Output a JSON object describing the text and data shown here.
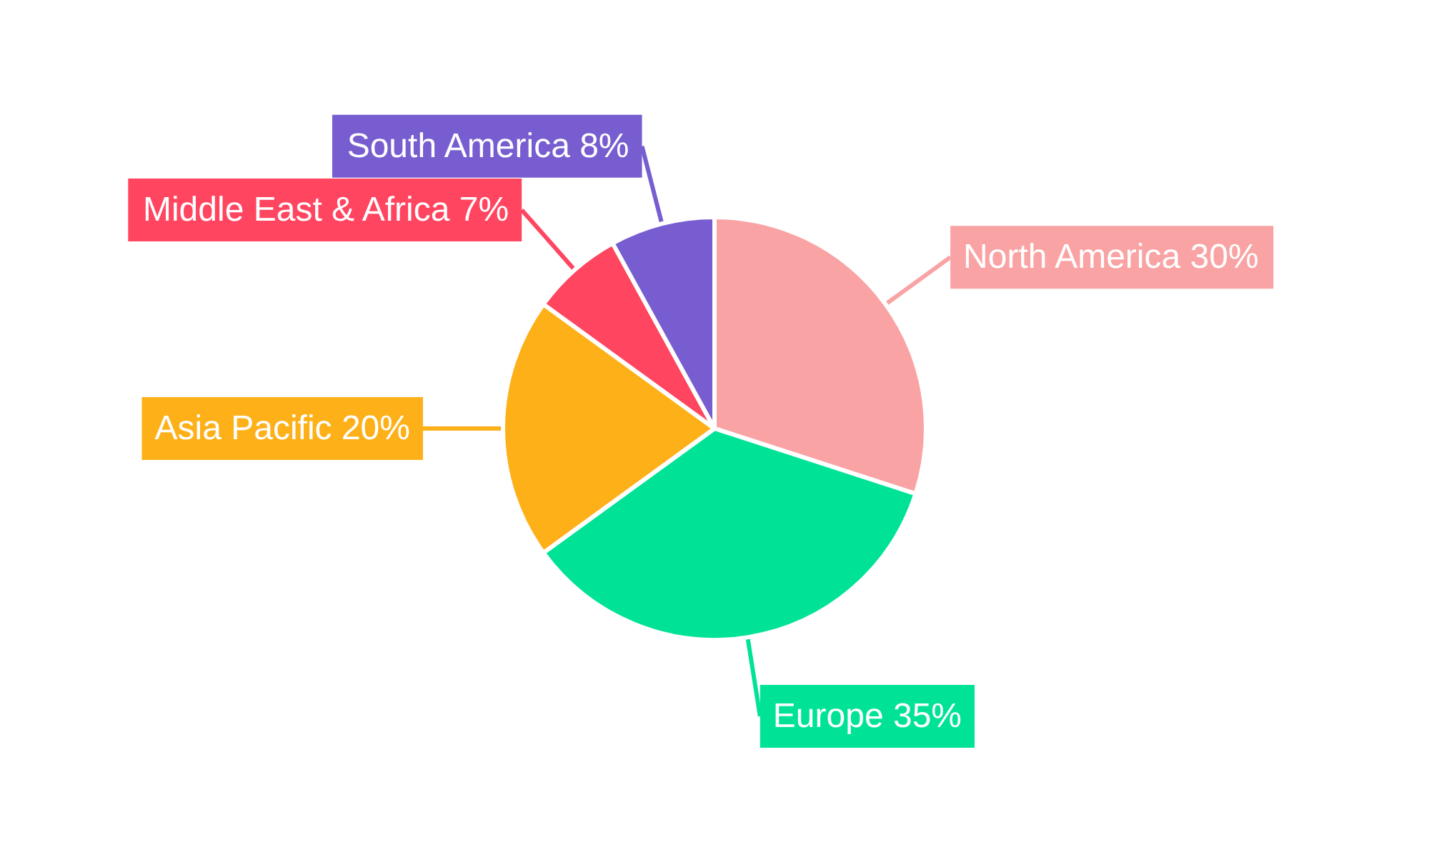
{
  "chart_data": {
    "type": "pie",
    "categories": [
      "North America",
      "Europe",
      "Asia Pacific",
      "Middle East & Africa",
      "South America"
    ],
    "values": [
      30,
      35,
      20,
      7,
      8
    ],
    "colors": [
      "#f9a3a4",
      "#00e396",
      "#feb019",
      "#ff4560",
      "#775dd0"
    ],
    "value_labels": [
      "30%",
      "35%",
      "20%",
      "7%",
      "8%"
    ]
  }
}
